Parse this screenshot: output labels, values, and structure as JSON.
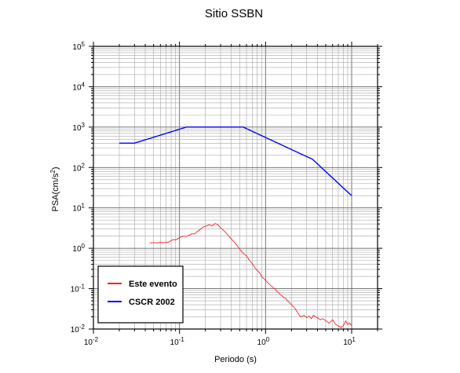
{
  "chart_data": {
    "type": "line",
    "title": "Sitio SSBN",
    "xlabel": "Periodo (s)",
    "ylabel_base": "PSA(cm/s",
    "ylabel_sup": "2",
    "ylabel_end": ")",
    "x_scale": "log",
    "y_scale": "log",
    "xlim": [
      0.01,
      20
    ],
    "ylim": [
      0.01,
      100000
    ],
    "grid": true,
    "legend_position": "bottom-left",
    "x_ticks": [
      {
        "base": "10",
        "exp": "-2",
        "value": 0.01
      },
      {
        "base": "10",
        "exp": "-1",
        "value": 0.1
      },
      {
        "base": "10",
        "exp": "0",
        "value": 1
      },
      {
        "base": "10",
        "exp": "1",
        "value": 10
      }
    ],
    "y_ticks": [
      {
        "base": "10",
        "exp": "-2",
        "value": 0.01
      },
      {
        "base": "10",
        "exp": "-1",
        "value": 0.1
      },
      {
        "base": "10",
        "exp": "0",
        "value": 1
      },
      {
        "base": "10",
        "exp": "1",
        "value": 10
      },
      {
        "base": "10",
        "exp": "2",
        "value": 100
      },
      {
        "base": "10",
        "exp": "3",
        "value": 1000
      },
      {
        "base": "10",
        "exp": "4",
        "value": 10000
      },
      {
        "base": "10",
        "exp": "5",
        "value": 100000
      }
    ],
    "series": [
      {
        "name": "Este evento",
        "color": "#ff2020",
        "x": [
          0.045,
          0.05,
          0.055,
          0.06,
          0.065,
          0.07,
          0.075,
          0.08,
          0.085,
          0.09,
          0.095,
          0.1,
          0.11,
          0.12,
          0.13,
          0.14,
          0.15,
          0.16,
          0.17,
          0.18,
          0.19,
          0.2,
          0.22,
          0.24,
          0.26,
          0.28,
          0.3,
          0.33,
          0.36,
          0.4,
          0.45,
          0.5,
          0.55,
          0.6,
          0.65,
          0.7,
          0.75,
          0.8,
          0.85,
          0.9,
          1.0,
          1.1,
          1.2,
          1.3,
          1.4,
          1.5,
          1.6,
          1.7,
          1.8,
          1.9,
          2.0,
          2.1,
          2.2,
          2.3,
          2.4,
          2.5,
          2.6,
          2.8,
          3.0,
          3.2,
          3.4,
          3.6,
          3.8,
          4.0,
          4.3,
          4.6,
          5.0,
          5.5,
          6.0,
          6.5,
          7.0,
          7.5,
          8.0,
          8.5,
          9.0,
          9.5,
          10.0
        ],
        "y": [
          1.35,
          1.38,
          1.36,
          1.4,
          1.38,
          1.4,
          1.42,
          1.55,
          1.65,
          1.6,
          1.7,
          1.85,
          2.0,
          1.95,
          2.1,
          2.3,
          2.25,
          2.6,
          2.8,
          3.1,
          3.4,
          3.5,
          3.8,
          3.6,
          4.1,
          3.8,
          3.2,
          2.7,
          2.2,
          1.7,
          1.3,
          0.95,
          0.75,
          0.65,
          0.5,
          0.42,
          0.33,
          0.28,
          0.25,
          0.2,
          0.16,
          0.13,
          0.11,
          0.095,
          0.08,
          0.07,
          0.062,
          0.058,
          0.05,
          0.045,
          0.04,
          0.036,
          0.032,
          0.028,
          0.024,
          0.021,
          0.02,
          0.022,
          0.019,
          0.021,
          0.018,
          0.022,
          0.02,
          0.019,
          0.017,
          0.018,
          0.016,
          0.014,
          0.017,
          0.013,
          0.012,
          0.011,
          0.012,
          0.016,
          0.013,
          0.014,
          0.012
        ]
      },
      {
        "name": "CSCR 2002",
        "color": "#0000ff",
        "x": [
          0.02,
          0.03,
          0.12,
          0.55,
          3.5,
          10.0
        ],
        "y": [
          400,
          400,
          1000,
          1000,
          160,
          20
        ]
      }
    ]
  }
}
